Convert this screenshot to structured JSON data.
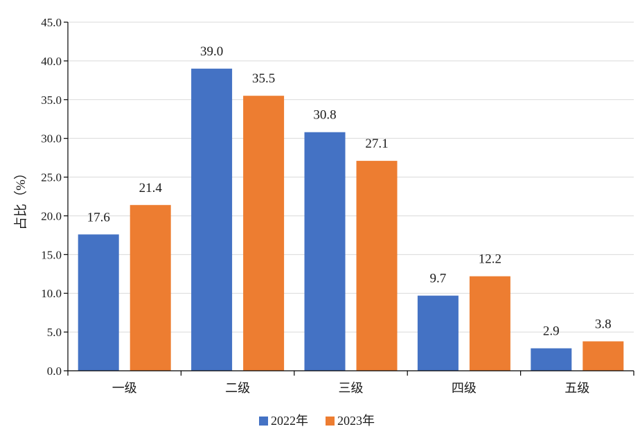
{
  "chart_data": {
    "type": "bar",
    "title": "",
    "xlabel": "",
    "ylabel": "占比（%）",
    "ylim": [
      0,
      45
    ],
    "yticks": [
      "0.0",
      "5.0",
      "10.0",
      "15.0",
      "20.0",
      "25.0",
      "30.0",
      "35.0",
      "40.0",
      "45.0"
    ],
    "ytick_values": [
      0,
      5,
      10,
      15,
      20,
      25,
      30,
      35,
      40,
      45
    ],
    "categories": [
      "一级",
      "二级",
      "三级",
      "四级",
      "五级"
    ],
    "series": [
      {
        "name": "2022年",
        "color": "#4472C4",
        "values": [
          17.6,
          39.0,
          30.8,
          9.7,
          2.9
        ],
        "labels": [
          "17.6",
          "39.0",
          "30.8",
          "9.7",
          "2.9"
        ]
      },
      {
        "name": "2023年",
        "color": "#ED7D31",
        "values": [
          21.4,
          35.5,
          27.1,
          12.2,
          3.8
        ],
        "labels": [
          "21.4",
          "35.5",
          "27.1",
          "12.2",
          "3.8"
        ]
      }
    ],
    "grid": true,
    "grid_color": "#d9d9d9",
    "axis_color": "#000000",
    "legend_position": "bottom"
  }
}
